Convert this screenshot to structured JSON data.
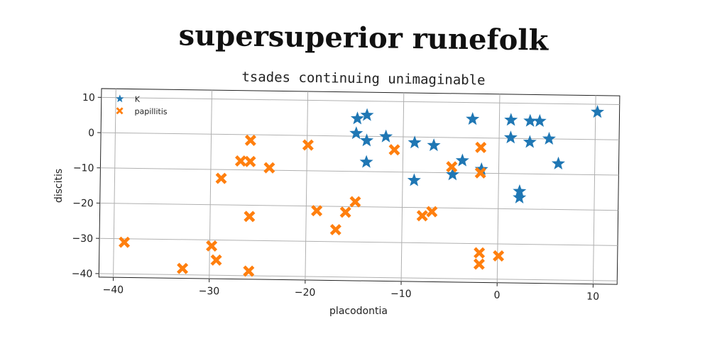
{
  "title": "supersuperior runefolk",
  "subtitle": "tsades continuing unimaginable",
  "chart_data": {
    "type": "scatter",
    "title": "supersuperior runefolk",
    "subtitle": "tsades continuing unimaginable",
    "xlabel": "placodontia",
    "ylabel": "discitis",
    "xlim": [
      -41.5,
      12.5
    ],
    "ylim": [
      -41,
      12.5
    ],
    "xticks": [
      -40,
      -30,
      -20,
      -10,
      0,
      10
    ],
    "yticks": [
      10,
      0,
      -10,
      -20,
      -30,
      -40
    ],
    "grid": true,
    "legend_position": "top-left",
    "series": [
      {
        "name": "K",
        "marker": "star",
        "color": "#1f77b4",
        "points": [
          [
            -14.8,
            5.0
          ],
          [
            -13.8,
            6.0
          ],
          [
            -14.9,
            0.8
          ],
          [
            -13.8,
            -1.2
          ],
          [
            -11.8,
            0.0
          ],
          [
            -13.8,
            -7.3
          ],
          [
            -8.8,
            -1.6
          ],
          [
            -6.8,
            -2.3
          ],
          [
            -8.8,
            -12.3
          ],
          [
            -3.8,
            -6.5
          ],
          [
            -4.8,
            -10.5
          ],
          [
            -2.8,
            5.3
          ],
          [
            -1.8,
            -8.9
          ],
          [
            1.2,
            5.2
          ],
          [
            1.2,
            0.2
          ],
          [
            3.2,
            5.0
          ],
          [
            4.2,
            5.0
          ],
          [
            3.2,
            -1.0
          ],
          [
            5.2,
            0.0
          ],
          [
            6.2,
            -7.0
          ],
          [
            2.2,
            -15.0
          ],
          [
            2.2,
            -16.8
          ],
          [
            10.2,
            7.8
          ]
        ]
      },
      {
        "name": "papillitis",
        "marker": "x",
        "color": "#ff7f0e",
        "points": [
          [
            -38.9,
            -31.0
          ],
          [
            -32.8,
            -38.2
          ],
          [
            -29.8,
            -31.7
          ],
          [
            -29.3,
            -35.7
          ],
          [
            -28.9,
            -12.5
          ],
          [
            -26.9,
            -7.5
          ],
          [
            -25.9,
            -7.6
          ],
          [
            -25.9,
            -1.6
          ],
          [
            -25.9,
            -23.2
          ],
          [
            -25.9,
            -38.7
          ],
          [
            -23.9,
            -9.3
          ],
          [
            -19.9,
            -2.7
          ],
          [
            -18.9,
            -21.3
          ],
          [
            -16.9,
            -26.6
          ],
          [
            -15.9,
            -21.6
          ],
          [
            -14.9,
            -18.6
          ],
          [
            -10.9,
            -3.7
          ],
          [
            -7.9,
            -22.3
          ],
          [
            -6.9,
            -21.1
          ],
          [
            -4.9,
            -8.3
          ],
          [
            -1.9,
            -2.7
          ],
          [
            -1.9,
            -9.9
          ],
          [
            -1.9,
            -32.6
          ],
          [
            -1.9,
            -35.8
          ],
          [
            0.1,
            -33.4
          ]
        ]
      }
    ]
  }
}
